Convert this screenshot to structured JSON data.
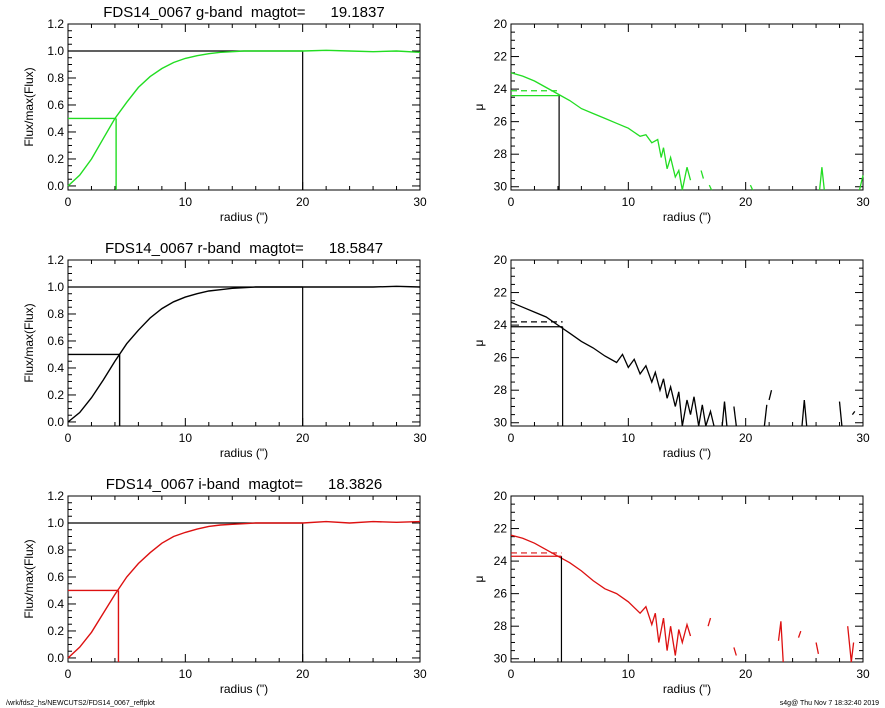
{
  "footer": {
    "left": "/wrk/fds2_hs/NEWCUTS2/FDS14_0067_reffplot",
    "right": "s4g@  Thu Nov  7 18:32:40 2019"
  },
  "chart_data": [
    {
      "type": "line",
      "panel": "growth",
      "title": "FDS14_0067 g-band  magtot=      19.1837",
      "band": "g",
      "color": "#22dd22",
      "magtot": 19.1837,
      "xlabel": "radius (\")",
      "ylabel": "Flux/max(Flux)",
      "xlim": [
        0,
        30
      ],
      "ylim": [
        -0.03,
        1.2
      ],
      "xticks": [
        0,
        10,
        20,
        30
      ],
      "yticks": [
        "0.0",
        "0.2",
        "0.4",
        "0.6",
        "0.8",
        "1.0",
        "1.2"
      ],
      "r_eff": 4.1,
      "r_max": 20.0,
      "x": [
        0,
        1,
        2,
        3,
        4,
        5,
        6,
        7,
        8,
        9,
        10,
        11,
        12,
        13,
        14,
        15,
        16,
        17,
        18,
        19,
        20,
        22,
        24,
        26,
        28,
        30
      ],
      "y": [
        0.0,
        0.08,
        0.2,
        0.35,
        0.5,
        0.62,
        0.73,
        0.81,
        0.87,
        0.915,
        0.945,
        0.965,
        0.98,
        0.99,
        0.995,
        1.0,
        1.0,
        1.0,
        1.0,
        1.0,
        1.0,
        1.005,
        1.0,
        0.995,
        1.0,
        0.99
      ]
    },
    {
      "type": "line",
      "panel": "surface-brightness",
      "band": "g",
      "color": "#22dd22",
      "xlabel": "radius (\")",
      "ylabel": "μ",
      "xlim": [
        0,
        30
      ],
      "ylim": [
        30.2,
        20
      ],
      "inverted_y": true,
      "xticks": [
        0,
        10,
        20,
        30
      ],
      "yticks": [
        "20",
        "22",
        "24",
        "26",
        "28",
        "30"
      ],
      "r_eff": 4.1,
      "mu_eff": 24.4,
      "mu_mean": 24.1,
      "segments": [
        {
          "x": [
            0,
            1,
            2,
            3,
            4,
            5,
            6,
            7,
            8,
            9,
            10,
            11,
            11.5,
            12,
            12.5,
            12.8,
            13,
            13.3,
            13.6,
            14,
            14.3,
            14.6,
            15,
            15.3
          ],
          "y": [
            23.0,
            23.2,
            23.5,
            23.9,
            24.3,
            24.7,
            25.2,
            25.5,
            25.8,
            26.1,
            26.4,
            26.9,
            26.8,
            27.3,
            27.1,
            28.2,
            27.6,
            28.9,
            28.2,
            29.4,
            29.0,
            30.2,
            28.8,
            29.6
          ]
        },
        {
          "x": [
            16.2,
            16.4
          ],
          "y": [
            29.0,
            29.5
          ]
        },
        {
          "x": [
            16.9,
            17.1
          ],
          "y": [
            29.9,
            30.2
          ]
        },
        {
          "x": [
            20.4,
            20.6
          ],
          "y": [
            29.9,
            30.2
          ]
        },
        {
          "x": [
            26.3,
            26.5,
            26.7
          ],
          "y": [
            30.2,
            28.8,
            30.2
          ]
        },
        {
          "x": [
            29.7,
            30
          ],
          "y": [
            30.2,
            29.3
          ]
        }
      ]
    },
    {
      "type": "line",
      "panel": "growth",
      "title": "FDS14_0067 r-band  magtot=      18.5847",
      "band": "r",
      "color": "#000000",
      "magtot": 18.5847,
      "xlabel": "radius (\")",
      "ylabel": "Flux/max(Flux)",
      "xlim": [
        0,
        30
      ],
      "ylim": [
        -0.03,
        1.2
      ],
      "xticks": [
        0,
        10,
        20,
        30
      ],
      "yticks": [
        "0.0",
        "0.2",
        "0.4",
        "0.6",
        "0.8",
        "1.0",
        "1.2"
      ],
      "r_eff": 4.4,
      "r_max": 20.0,
      "x": [
        0,
        1,
        2,
        3,
        4,
        5,
        6,
        7,
        8,
        9,
        10,
        11,
        12,
        13,
        14,
        15,
        16,
        17,
        18,
        19,
        20,
        22,
        24,
        26,
        28,
        30
      ],
      "y": [
        0.0,
        0.07,
        0.18,
        0.31,
        0.45,
        0.58,
        0.68,
        0.77,
        0.84,
        0.89,
        0.925,
        0.95,
        0.97,
        0.98,
        0.99,
        0.995,
        1.0,
        1.0,
        1.0,
        1.0,
        1.0,
        1.0,
        1.0,
        1.0,
        1.005,
        1.0
      ]
    },
    {
      "type": "line",
      "panel": "surface-brightness",
      "band": "r",
      "color": "#000000",
      "xlabel": "radius (\")",
      "ylabel": "μ",
      "xlim": [
        0,
        30
      ],
      "ylim": [
        30.2,
        20
      ],
      "inverted_y": true,
      "xticks": [
        0,
        10,
        20,
        30
      ],
      "yticks": [
        "20",
        "22",
        "24",
        "26",
        "28",
        "30"
      ],
      "r_eff": 4.4,
      "mu_eff": 24.1,
      "mu_mean": 23.8,
      "segments": [
        {
          "x": [
            0,
            1,
            2,
            3,
            4,
            5,
            6,
            7,
            8,
            9,
            9.5,
            10,
            10.5,
            11,
            11.5,
            12,
            12.3,
            12.7,
            13,
            13.3,
            13.6,
            14,
            14.3,
            14.6,
            15,
            15.3,
            15.6,
            16,
            16.3,
            16.6,
            17,
            17.3
          ],
          "y": [
            22.6,
            22.9,
            23.2,
            23.5,
            24.0,
            24.5,
            25.0,
            25.4,
            25.9,
            26.3,
            25.8,
            26.6,
            26.1,
            27.0,
            26.5,
            27.5,
            26.9,
            28.0,
            27.3,
            28.5,
            27.8,
            29.0,
            28.1,
            30.2,
            28.6,
            29.5,
            28.4,
            30.2,
            28.9,
            30.2,
            29.3,
            30.2
          ]
        },
        {
          "x": [
            18,
            18.2,
            18.4
          ],
          "y": [
            30.2,
            28.7,
            30.2
          ]
        },
        {
          "x": [
            19,
            19.2
          ],
          "y": [
            29.0,
            30.2
          ]
        },
        {
          "x": [
            21.6,
            21.8
          ],
          "y": [
            30.2,
            28.9
          ]
        },
        {
          "x": [
            22,
            22.2
          ],
          "y": [
            28.6,
            28.0
          ]
        },
        {
          "x": [
            24.8,
            25,
            25.2
          ],
          "y": [
            30.2,
            28.6,
            30.2
          ]
        },
        {
          "x": [
            28,
            28.2
          ],
          "y": [
            28.7,
            30.2
          ]
        },
        {
          "x": [
            29.1,
            29.3
          ],
          "y": [
            29.5,
            29.3
          ]
        }
      ]
    },
    {
      "type": "line",
      "panel": "growth",
      "title": "FDS14_0067 i-band  magtot=      18.3826",
      "band": "i",
      "color": "#dd1111",
      "magtot": 18.3826,
      "xlabel": "radius (\")",
      "ylabel": "Flux/max(Flux)",
      "xlim": [
        0,
        30
      ],
      "ylim": [
        -0.03,
        1.2
      ],
      "xticks": [
        0,
        10,
        20,
        30
      ],
      "yticks": [
        "0.0",
        "0.2",
        "0.4",
        "0.6",
        "0.8",
        "1.0",
        "1.2"
      ],
      "r_eff": 4.3,
      "r_max": 20.0,
      "x": [
        0,
        1,
        2,
        3,
        4,
        5,
        6,
        7,
        8,
        9,
        10,
        11,
        12,
        13,
        14,
        15,
        16,
        17,
        18,
        19,
        20,
        22,
        24,
        26,
        28,
        30
      ],
      "y": [
        0.0,
        0.08,
        0.19,
        0.33,
        0.47,
        0.6,
        0.7,
        0.78,
        0.85,
        0.9,
        0.93,
        0.955,
        0.975,
        0.985,
        0.99,
        0.995,
        1.0,
        1.0,
        1.0,
        1.0,
        1.0,
        1.01,
        1.0,
        1.01,
        1.005,
        1.01
      ]
    },
    {
      "type": "line",
      "panel": "surface-brightness",
      "band": "i",
      "color": "#dd1111",
      "xlabel": "radius (\")",
      "ylabel": "μ",
      "xlim": [
        0,
        30
      ],
      "ylim": [
        30.2,
        20
      ],
      "inverted_y": true,
      "xticks": [
        0,
        10,
        20,
        30
      ],
      "yticks": [
        "20",
        "22",
        "24",
        "26",
        "28",
        "30"
      ],
      "r_eff": 4.3,
      "mu_eff": 23.7,
      "mu_mean": 23.5,
      "segments": [
        {
          "x": [
            0,
            1,
            2,
            3,
            4,
            5,
            6,
            7,
            8,
            9,
            10,
            11,
            11.5,
            12,
            12.3,
            12.6,
            13,
            13.3,
            13.6,
            14,
            14.3,
            14.6,
            15,
            15.3
          ],
          "y": [
            22.4,
            22.6,
            22.9,
            23.3,
            23.7,
            24.1,
            24.6,
            25.2,
            25.7,
            26.0,
            26.5,
            27.2,
            26.8,
            27.9,
            27.2,
            29.0,
            27.5,
            29.5,
            28.0,
            29.8,
            28.2,
            29.0,
            27.9,
            28.6
          ]
        },
        {
          "x": [
            16.8,
            17
          ],
          "y": [
            28.0,
            27.5
          ]
        },
        {
          "x": [
            19,
            19.2
          ],
          "y": [
            29.3,
            29.8
          ]
        },
        {
          "x": [
            22.8,
            23,
            23.2
          ],
          "y": [
            28.9,
            27.7,
            30.2
          ]
        },
        {
          "x": [
            24.5,
            24.7
          ],
          "y": [
            28.7,
            28.3
          ]
        },
        {
          "x": [
            26,
            26.2
          ],
          "y": [
            29.0,
            29.7
          ]
        },
        {
          "x": [
            28.7,
            29,
            29.2
          ],
          "y": [
            28.0,
            30.2,
            29.0
          ]
        }
      ]
    }
  ]
}
